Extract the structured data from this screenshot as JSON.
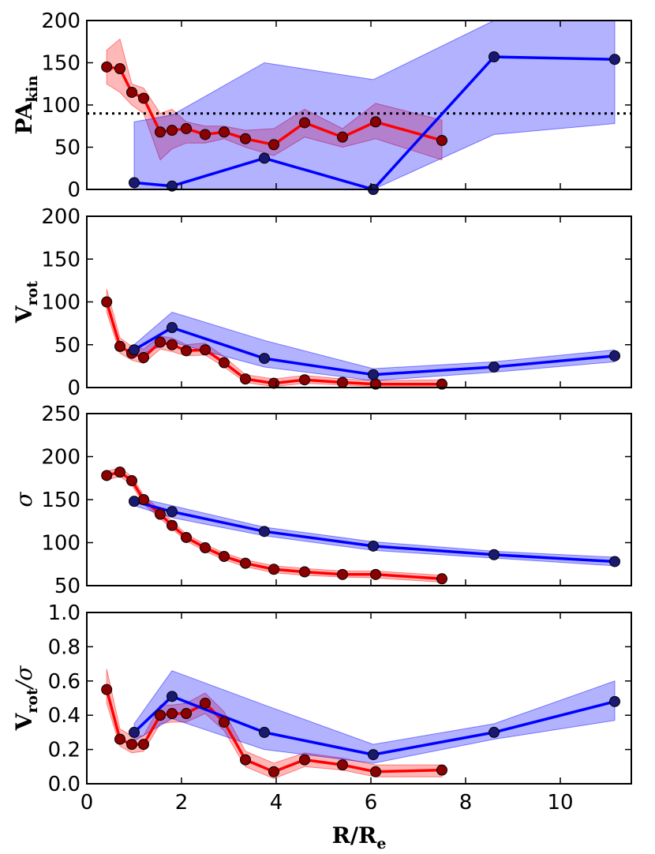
{
  "chart_data": [
    {
      "type": "line",
      "id": "pa",
      "ylabel_main": "PA",
      "ylabel_sub": "kin",
      "ylabel_italic": false,
      "ylim": [
        0,
        200
      ],
      "yticks": [
        0,
        50,
        100,
        150,
        200
      ],
      "hline": 90,
      "series": [
        {
          "name": "red",
          "color": "#ff0000",
          "marker_color": "#8b0000",
          "band_color": "#ff0000",
          "x": [
            0.42,
            0.7,
            0.95,
            1.2,
            1.55,
            1.8,
            2.1,
            2.5,
            2.9,
            3.35,
            3.95,
            4.6,
            5.4,
            6.1,
            7.5
          ],
          "y": [
            145,
            143,
            115,
            108,
            68,
            70,
            72,
            65,
            68,
            60,
            53,
            79,
            62,
            80,
            58
          ],
          "lo": [
            125,
            115,
            100,
            90,
            35,
            48,
            55,
            55,
            60,
            50,
            40,
            62,
            50,
            60,
            35
          ],
          "hi": [
            165,
            178,
            125,
            120,
            90,
            95,
            80,
            75,
            75,
            70,
            72,
            95,
            72,
            102,
            82
          ]
        },
        {
          "name": "blue",
          "color": "#0000ff",
          "marker_color": "#191970",
          "band_color": "#0000ff",
          "x": [
            1.0,
            1.8,
            3.75,
            6.05,
            8.6,
            11.15
          ],
          "y": [
            8,
            4,
            37,
            0,
            157,
            154
          ],
          "lo": [
            0,
            0,
            0,
            0,
            65,
            78
          ],
          "hi": [
            80,
            88,
            150,
            130,
            200,
            200
          ]
        }
      ]
    },
    {
      "type": "line",
      "id": "vrot",
      "ylabel_main": "V",
      "ylabel_sub": "rot",
      "ylabel_italic": false,
      "ylim": [
        0,
        200
      ],
      "yticks": [
        0,
        50,
        100,
        150,
        200
      ],
      "series": [
        {
          "name": "red",
          "color": "#ff0000",
          "marker_color": "#8b0000",
          "band_color": "#ff0000",
          "x": [
            0.42,
            0.7,
            0.95,
            1.2,
            1.55,
            1.8,
            2.1,
            2.5,
            2.9,
            3.35,
            3.95,
            4.6,
            5.4,
            6.1,
            7.5
          ],
          "y": [
            100,
            48,
            40,
            35,
            53,
            50,
            43,
            44,
            29,
            10,
            5,
            9,
            6,
            4,
            4
          ],
          "lo": [
            88,
            40,
            32,
            28,
            45,
            42,
            37,
            38,
            24,
            6,
            1,
            5,
            3,
            1,
            1
          ],
          "hi": [
            115,
            58,
            48,
            45,
            60,
            58,
            50,
            52,
            36,
            15,
            10,
            14,
            10,
            8,
            9
          ]
        },
        {
          "name": "blue",
          "color": "#0000ff",
          "marker_color": "#191970",
          "band_color": "#0000ff",
          "x": [
            1.0,
            1.8,
            3.75,
            6.05,
            8.6,
            11.15
          ],
          "y": [
            44,
            70,
            34,
            15,
            24,
            37
          ],
          "lo": [
            36,
            53,
            24,
            8,
            18,
            30
          ],
          "hi": [
            50,
            88,
            55,
            22,
            30,
            44
          ]
        }
      ]
    },
    {
      "type": "line",
      "id": "sigma",
      "ylabel_main": "σ",
      "ylabel_sub": "",
      "ylabel_italic": true,
      "ylim": [
        50,
        250
      ],
      "yticks": [
        50,
        100,
        150,
        200,
        250
      ],
      "series": [
        {
          "name": "red",
          "color": "#ff0000",
          "marker_color": "#8b0000",
          "band_color": "#ff0000",
          "x": [
            0.42,
            0.7,
            0.95,
            1.2,
            1.55,
            1.8,
            2.1,
            2.5,
            2.9,
            3.35,
            3.95,
            4.6,
            5.4,
            6.1,
            7.5
          ],
          "y": [
            178,
            182,
            172,
            150,
            133,
            120,
            106,
            94,
            84,
            76,
            69,
            66,
            63,
            63,
            58
          ],
          "lo": [
            173,
            177,
            167,
            145,
            128,
            116,
            102,
            90,
            80,
            72,
            65,
            62,
            60,
            59,
            54
          ],
          "hi": [
            183,
            187,
            177,
            155,
            138,
            125,
            110,
            98,
            88,
            80,
            73,
            70,
            67,
            67,
            62
          ]
        },
        {
          "name": "blue",
          "color": "#0000ff",
          "marker_color": "#191970",
          "band_color": "#0000ff",
          "x": [
            1.0,
            1.8,
            3.75,
            6.05,
            8.6,
            11.15
          ],
          "y": [
            148,
            136,
            113,
            96,
            86,
            78
          ],
          "lo": [
            143,
            129,
            108,
            91,
            82,
            73
          ],
          "hi": [
            153,
            143,
            118,
            101,
            90,
            83
          ]
        }
      ]
    },
    {
      "type": "line",
      "id": "vsigma",
      "ylabel_main": "V",
      "ylabel_sub": "rot",
      "ylabel_suffix": "/σ",
      "ylabel_italic": false,
      "ylim": [
        0,
        1.0
      ],
      "yticks": [
        0.0,
        0.2,
        0.4,
        0.6,
        0.8,
        1.0
      ],
      "series": [
        {
          "name": "red",
          "color": "#ff0000",
          "marker_color": "#8b0000",
          "band_color": "#ff0000",
          "x": [
            0.42,
            0.7,
            0.95,
            1.2,
            1.55,
            1.8,
            2.1,
            2.5,
            2.9,
            3.35,
            3.95,
            4.6,
            5.4,
            6.1,
            7.5
          ],
          "y": [
            0.55,
            0.26,
            0.23,
            0.23,
            0.4,
            0.41,
            0.41,
            0.47,
            0.36,
            0.14,
            0.07,
            0.14,
            0.11,
            0.07,
            0.08
          ],
          "lo": [
            0.47,
            0.22,
            0.18,
            0.19,
            0.35,
            0.36,
            0.36,
            0.41,
            0.31,
            0.1,
            0.03,
            0.1,
            0.08,
            0.04,
            0.04
          ],
          "hi": [
            0.67,
            0.32,
            0.28,
            0.28,
            0.46,
            0.46,
            0.47,
            0.53,
            0.42,
            0.19,
            0.12,
            0.18,
            0.15,
            0.11,
            0.11
          ]
        },
        {
          "name": "blue",
          "color": "#0000ff",
          "marker_color": "#191970",
          "band_color": "#0000ff",
          "x": [
            1.0,
            1.8,
            3.75,
            6.05,
            8.6,
            11.15
          ],
          "y": [
            0.3,
            0.51,
            0.3,
            0.17,
            0.3,
            0.48
          ],
          "lo": [
            0.25,
            0.38,
            0.2,
            0.12,
            0.26,
            0.37
          ],
          "hi": [
            0.35,
            0.66,
            0.46,
            0.23,
            0.35,
            0.6
          ]
        }
      ]
    }
  ],
  "xaxis": {
    "xlim": [
      0,
      11.5
    ],
    "xticks": [
      0,
      2,
      4,
      6,
      8,
      10
    ],
    "xlabel_main": "R/R",
    "xlabel_sub": "e"
  }
}
